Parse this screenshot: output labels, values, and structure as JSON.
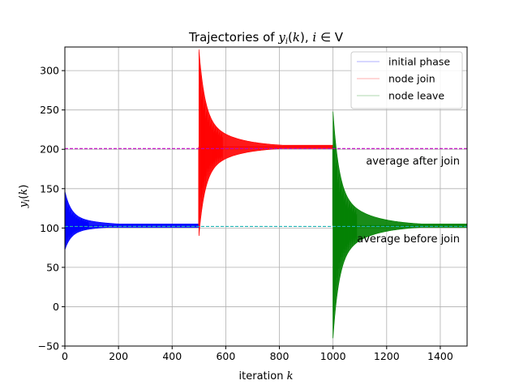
{
  "chart_data": {
    "type": "line",
    "title": "Trajectories of y_i(k), i ∈ V",
    "xlabel": "iteration k",
    "ylabel": "y_i(k)",
    "xlim": [
      0,
      1500
    ],
    "ylim": [
      -50,
      330
    ],
    "xticks": [
      0,
      200,
      400,
      600,
      800,
      1000,
      1200,
      1400
    ],
    "yticks": [
      -50,
      0,
      50,
      100,
      150,
      200,
      250,
      300
    ],
    "grid": true,
    "legend_position": "top-right",
    "series": [
      {
        "name": "initial phase",
        "color": "#0000ff",
        "k_start": 0,
        "k_end": 500,
        "converges_to": 103,
        "initial_min": 72,
        "initial_max": 147
      },
      {
        "name": "node join",
        "color": "#ff0000",
        "k_start": 500,
        "k_end": 1000,
        "converges_to": 203,
        "initial_min": 90,
        "initial_max": 327
      },
      {
        "name": "node leave",
        "color": "#008000",
        "k_start": 1000,
        "k_end": 1500,
        "converges_to": 103,
        "initial_min": -40,
        "initial_max": 248
      }
    ],
    "reference_lines": [
      {
        "label": "average after join",
        "y": 201,
        "color": "#c000c0"
      },
      {
        "label": "average before join",
        "y": 102,
        "color": "#20b2b2"
      }
    ]
  }
}
